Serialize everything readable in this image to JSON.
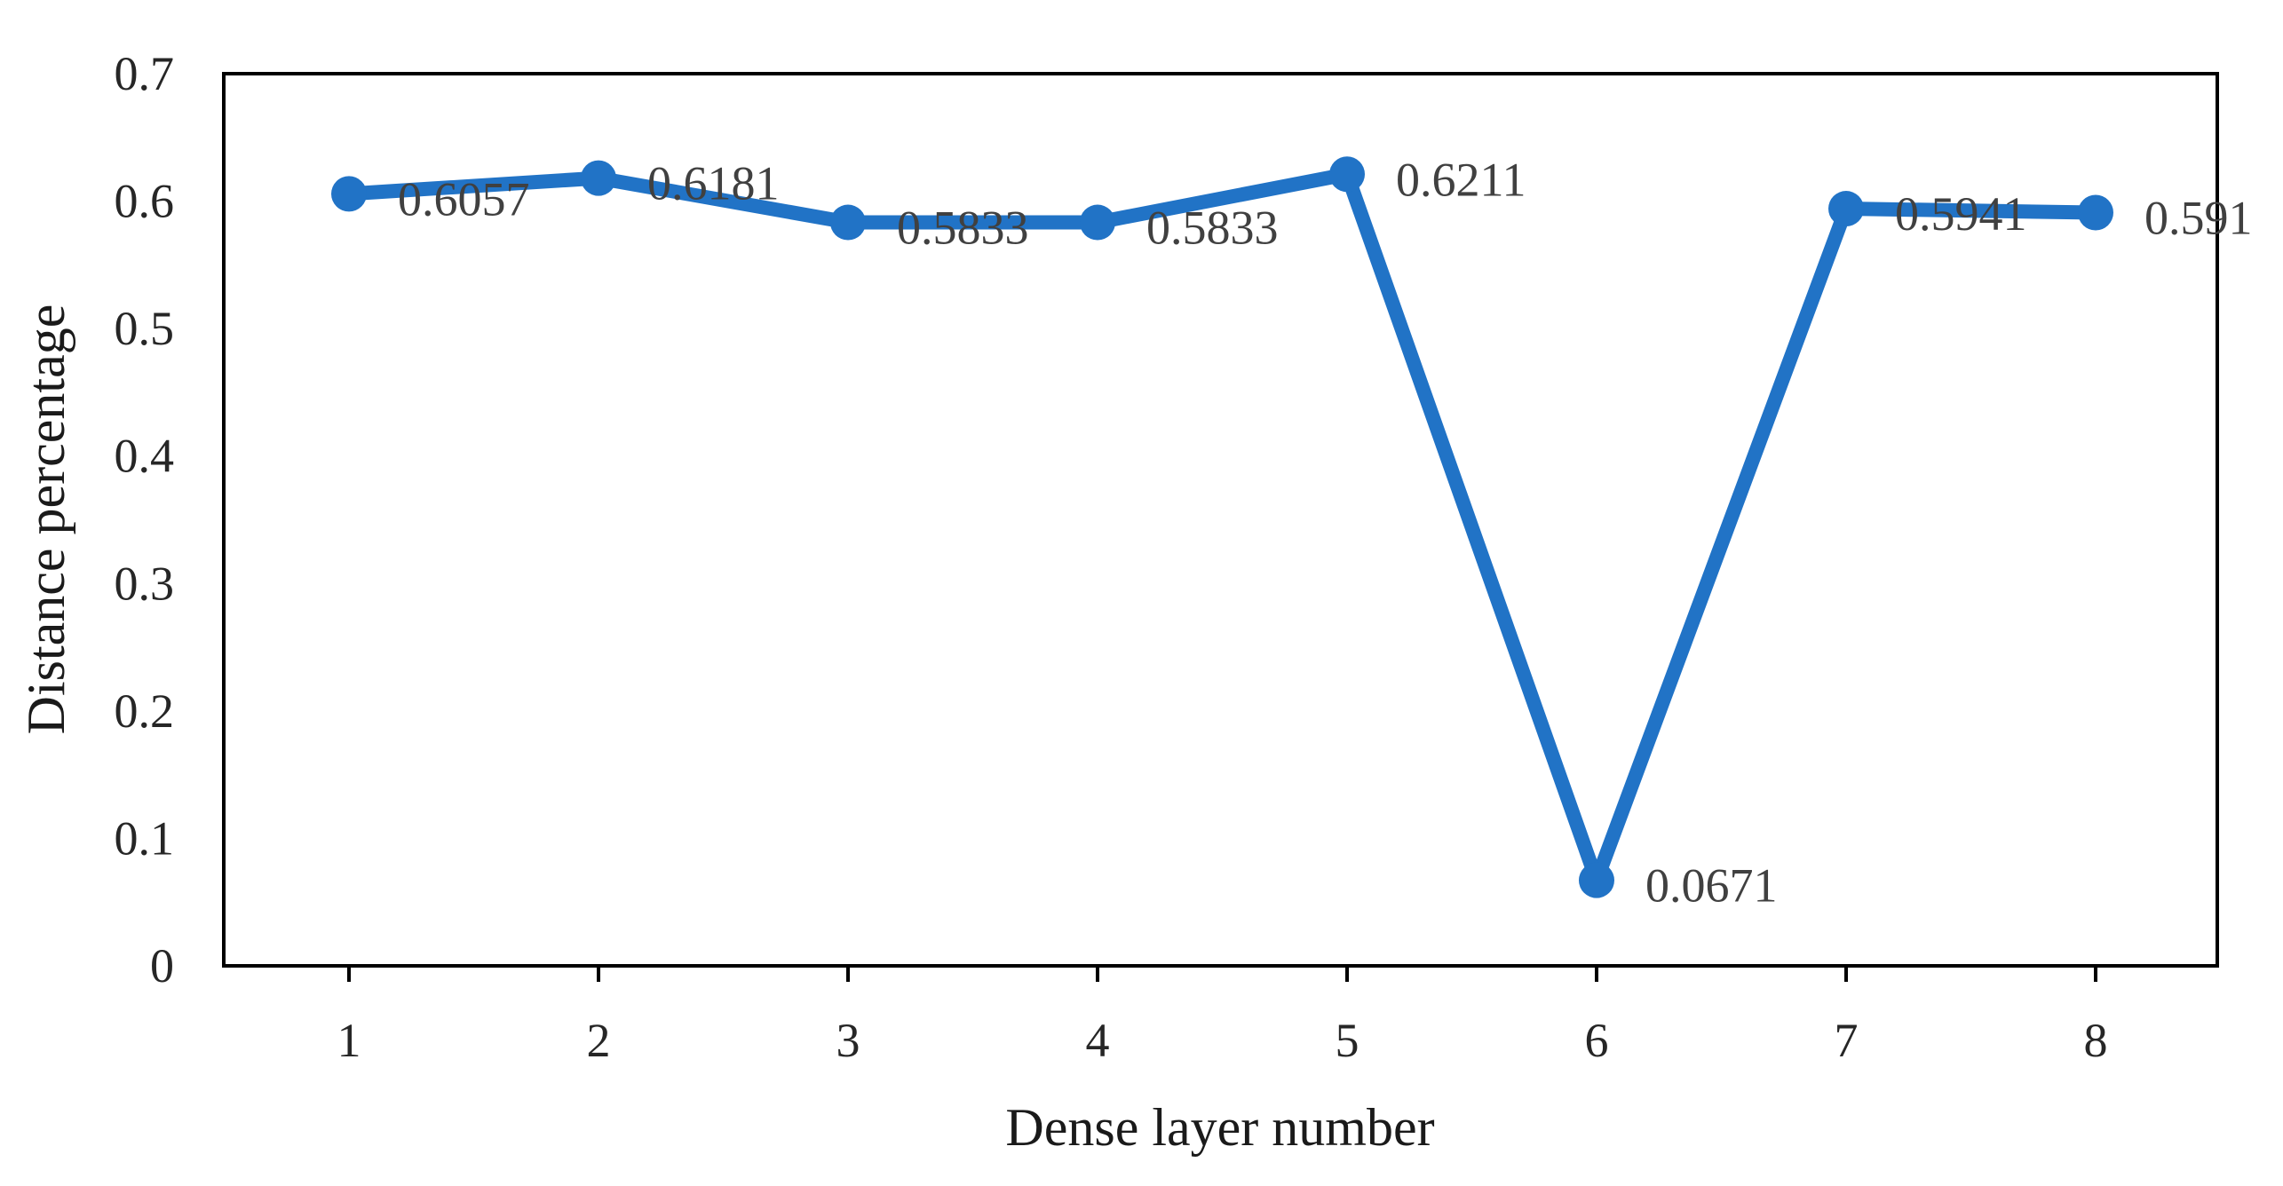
{
  "chart_data": {
    "type": "line",
    "title": "",
    "xlabel": "Dense layer number",
    "ylabel": "Distance percentage",
    "categories": [
      "1",
      "2",
      "3",
      "4",
      "5",
      "6",
      "7",
      "8"
    ],
    "x": [
      1,
      2,
      3,
      4,
      5,
      6,
      7,
      8
    ],
    "values": [
      0.6057,
      0.6181,
      0.5833,
      0.5833,
      0.6211,
      0.0671,
      0.5941,
      0.591
    ],
    "data_labels": [
      "0.6057",
      "0.6181",
      "0.5833",
      "0.5833",
      "0.6211",
      "0.0671",
      "0.5941",
      "0.591"
    ],
    "ylim": [
      0,
      0.7
    ],
    "yticks": [
      "0",
      "0.1",
      "0.2",
      "0.3",
      "0.4",
      "0.5",
      "0.6",
      "0.7"
    ],
    "grid": false,
    "legend": "none",
    "series_color": "#2173C6"
  }
}
